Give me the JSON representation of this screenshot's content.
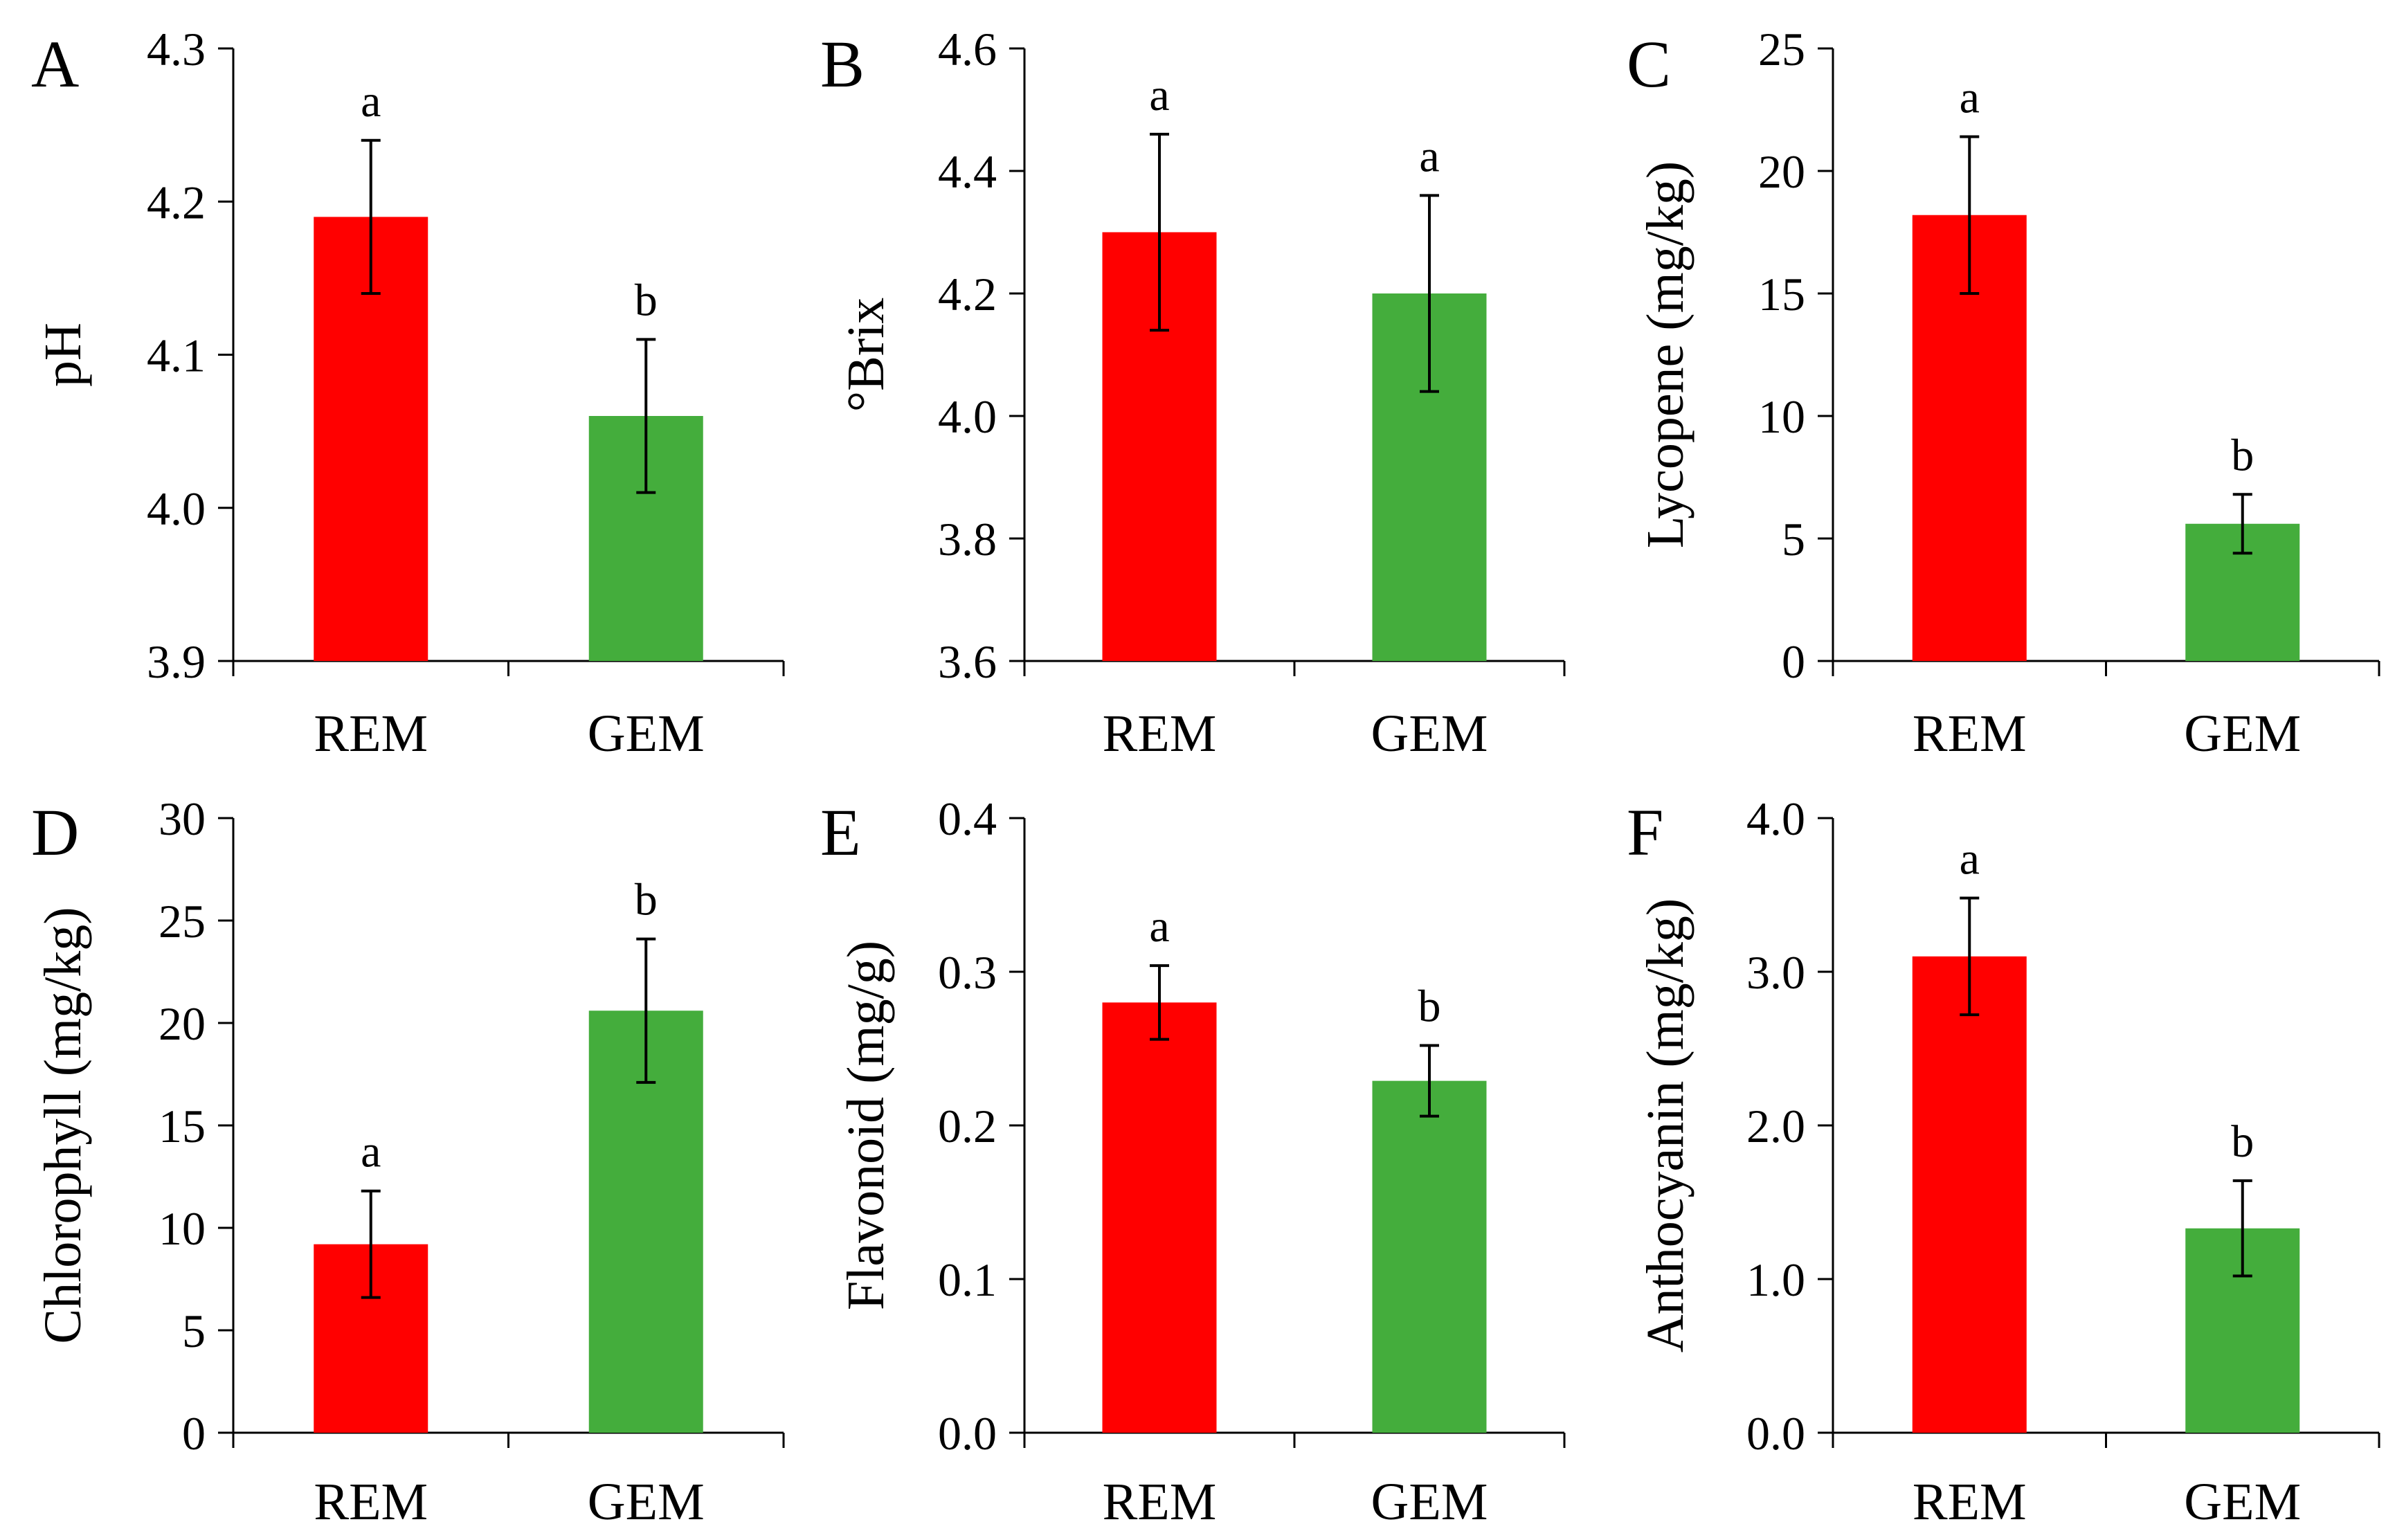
{
  "chart_data": [
    {
      "type": "bar",
      "panel_label": "A",
      "ylabel": "pH",
      "categories": [
        "REM",
        "GEM"
      ],
      "values": [
        4.19,
        4.06
      ],
      "errors": [
        0.05,
        0.05
      ],
      "significance": [
        "a",
        "b"
      ],
      "ylim": [
        3.9,
        4.3
      ],
      "yticks": [
        "3.9",
        "4.0",
        "4.1",
        "4.2",
        "4.3"
      ],
      "colors": [
        "#ff0000",
        "#44ad3c"
      ]
    },
    {
      "type": "bar",
      "panel_label": "B",
      "ylabel": "°Brix",
      "categories": [
        "REM",
        "GEM"
      ],
      "values": [
        4.3,
        4.2
      ],
      "errors": [
        0.16,
        0.16
      ],
      "significance": [
        "a",
        "a"
      ],
      "ylim": [
        3.6,
        4.6
      ],
      "yticks": [
        "3.6",
        "3.8",
        "4.0",
        "4.2",
        "4.4",
        "4.6"
      ],
      "colors": [
        "#ff0000",
        "#44ad3c"
      ]
    },
    {
      "type": "bar",
      "panel_label": "C",
      "ylabel": "Lycopene (mg/kg)",
      "categories": [
        "REM",
        "GEM"
      ],
      "values": [
        18.2,
        5.6
      ],
      "errors": [
        3.2,
        1.2
      ],
      "significance": [
        "a",
        "b"
      ],
      "ylim": [
        0,
        25
      ],
      "yticks": [
        "0",
        "5",
        "10",
        "15",
        "20",
        "25"
      ],
      "colors": [
        "#ff0000",
        "#44ad3c"
      ]
    },
    {
      "type": "bar",
      "panel_label": "D",
      "ylabel": "Chlorophyll (mg/kg)",
      "categories": [
        "REM",
        "GEM"
      ],
      "values": [
        9.2,
        20.6
      ],
      "errors": [
        2.6,
        3.5
      ],
      "significance": [
        "a",
        "b"
      ],
      "ylim": [
        0,
        30
      ],
      "yticks": [
        "0",
        "5",
        "10",
        "15",
        "20",
        "25",
        "30"
      ],
      "colors": [
        "#ff0000",
        "#44ad3c"
      ]
    },
    {
      "type": "bar",
      "panel_label": "E",
      "ylabel": "Flavonoid (mg/g)",
      "categories": [
        "REM",
        "GEM"
      ],
      "values": [
        0.28,
        0.229
      ],
      "errors": [
        0.024,
        0.023
      ],
      "significance": [
        "a",
        "b"
      ],
      "ylim": [
        0,
        0.4
      ],
      "yticks": [
        "0.0",
        "0.1",
        "0.2",
        "0.3",
        "0.4"
      ],
      "colors": [
        "#ff0000",
        "#44ad3c"
      ]
    },
    {
      "type": "bar",
      "panel_label": "F",
      "ylabel": "Anthocyanin (mg/kg)",
      "categories": [
        "REM",
        "GEM"
      ],
      "values": [
        3.1,
        1.33
      ],
      "errors": [
        0.38,
        0.31
      ],
      "significance": [
        "a",
        "b"
      ],
      "ylim": [
        0,
        4
      ],
      "yticks": [
        "0.0",
        "1.0",
        "2.0",
        "3.0",
        "4.0"
      ],
      "colors": [
        "#ff0000",
        "#44ad3c"
      ]
    }
  ]
}
